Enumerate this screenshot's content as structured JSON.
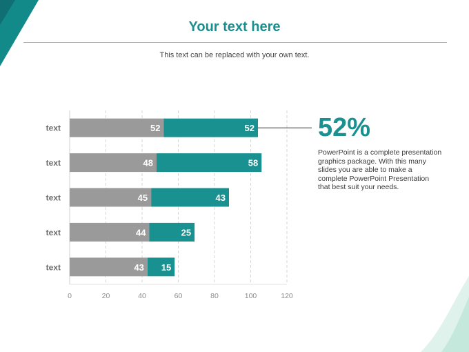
{
  "header": {
    "title": "Your text here",
    "subtitle": "This text can be replaced with your own text."
  },
  "callout": {
    "value": "52%",
    "description": "PowerPoint is a complete presentation graphics package. With this many slides you are able to make a complete PowerPoint Presentation that best suit your needs."
  },
  "colors": {
    "accent": "#1a9191",
    "gray": "#9a9a9a",
    "title": "#1a8f8f"
  },
  "chart_data": {
    "type": "bar",
    "orientation": "horizontal",
    "stacked": true,
    "categories": [
      "text",
      "text",
      "text",
      "text",
      "text"
    ],
    "series": [
      {
        "values": [
          52,
          48,
          45,
          44,
          43
        ],
        "color": "#9a9a9a"
      },
      {
        "values": [
          52,
          58,
          43,
          25,
          15
        ],
        "color": "#1a9191"
      }
    ],
    "xlim": [
      0,
      120
    ],
    "xticks": [
      0,
      20,
      40,
      60,
      80,
      100,
      120
    ],
    "grid": true,
    "legend": "none",
    "title": "",
    "xlabel": "",
    "ylabel": ""
  }
}
